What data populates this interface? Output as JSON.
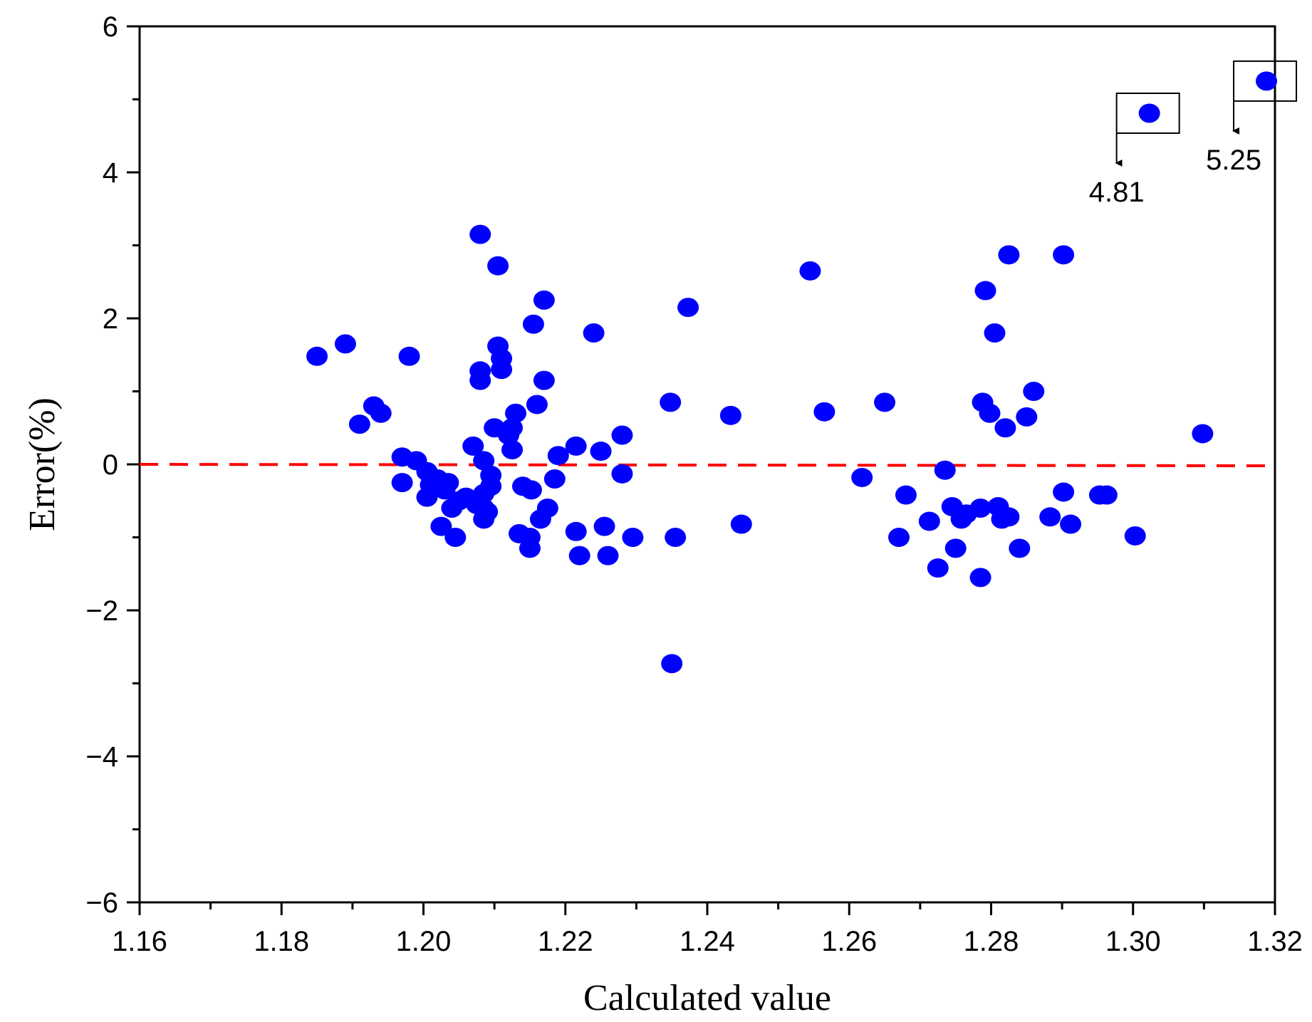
{
  "chart_data": {
    "type": "scatter",
    "title": "",
    "xlabel": "Calculated value",
    "ylabel": "Error(%)",
    "xlim": [
      1.16,
      1.32
    ],
    "ylim": [
      -6,
      6
    ],
    "xticks": [
      "1.16",
      "1.18",
      "1.20",
      "1.22",
      "1.24",
      "1.26",
      "1.28",
      "1.30",
      "1.32"
    ],
    "yticks": [
      "6",
      "4",
      "2",
      "0",
      "−2",
      "−4",
      "−6"
    ],
    "grid": false,
    "point_color": "#0000ff",
    "reference_line": {
      "y": 0,
      "style": "dashed",
      "color": "#ff0000"
    },
    "points": [
      [
        1.185,
        1.48
      ],
      [
        1.189,
        1.65
      ],
      [
        1.191,
        0.55
      ],
      [
        1.193,
        0.8
      ],
      [
        1.194,
        0.7
      ],
      [
        1.197,
        0.1
      ],
      [
        1.197,
        -0.25
      ],
      [
        1.198,
        1.48
      ],
      [
        1.199,
        0.05
      ],
      [
        1.2005,
        -0.1
      ],
      [
        1.2005,
        -0.45
      ],
      [
        1.201,
        -0.28
      ],
      [
        1.202,
        -0.2
      ],
      [
        1.2025,
        -0.85
      ],
      [
        1.203,
        -0.35
      ],
      [
        1.2035,
        -0.25
      ],
      [
        1.204,
        -0.6
      ],
      [
        1.2045,
        -1.0
      ],
      [
        1.205,
        -0.5
      ],
      [
        1.206,
        -0.45
      ],
      [
        1.207,
        0.25
      ],
      [
        1.2075,
        -0.55
      ],
      [
        1.208,
        3.15
      ],
      [
        1.208,
        1.28
      ],
      [
        1.208,
        1.15
      ],
      [
        1.2085,
        0.05
      ],
      [
        1.2085,
        -0.4
      ],
      [
        1.2085,
        -0.6
      ],
      [
        1.2085,
        -0.75
      ],
      [
        1.209,
        -0.65
      ],
      [
        1.2095,
        -0.15
      ],
      [
        1.2095,
        -0.3
      ],
      [
        1.21,
        0.5
      ],
      [
        1.2105,
        2.72
      ],
      [
        1.2105,
        1.62
      ],
      [
        1.211,
        1.45
      ],
      [
        1.211,
        1.3
      ],
      [
        1.212,
        0.4
      ],
      [
        1.2125,
        0.5
      ],
      [
        1.2125,
        0.2
      ],
      [
        1.213,
        0.7
      ],
      [
        1.2135,
        -0.95
      ],
      [
        1.214,
        -0.3
      ],
      [
        1.215,
        -1.0
      ],
      [
        1.215,
        -1.15
      ],
      [
        1.2152,
        -0.35
      ],
      [
        1.2155,
        1.92
      ],
      [
        1.216,
        0.82
      ],
      [
        1.2165,
        -0.75
      ],
      [
        1.217,
        2.25
      ],
      [
        1.217,
        1.15
      ],
      [
        1.2175,
        -0.6
      ],
      [
        1.2185,
        -0.2
      ],
      [
        1.219,
        0.12
      ],
      [
        1.2215,
        0.25
      ],
      [
        1.2215,
        -0.92
      ],
      [
        1.222,
        -1.25
      ],
      [
        1.224,
        1.8
      ],
      [
        1.225,
        0.18
      ],
      [
        1.2255,
        -0.85
      ],
      [
        1.226,
        -1.25
      ],
      [
        1.228,
        0.4
      ],
      [
        1.228,
        -0.13
      ],
      [
        1.2295,
        -1.0
      ],
      [
        1.2348,
        0.85
      ],
      [
        1.2355,
        -1.0
      ],
      [
        1.235,
        -2.73
      ],
      [
        1.2373,
        2.15
      ],
      [
        1.2433,
        0.67
      ],
      [
        1.2448,
        -0.82
      ],
      [
        1.2545,
        2.65
      ],
      [
        1.2565,
        0.72
      ],
      [
        1.2618,
        -0.18
      ],
      [
        1.265,
        0.85
      ],
      [
        1.267,
        -1.0
      ],
      [
        1.268,
        -0.42
      ],
      [
        1.2713,
        -0.78
      ],
      [
        1.2725,
        -1.42
      ],
      [
        1.2735,
        -0.08
      ],
      [
        1.2745,
        -0.58
      ],
      [
        1.275,
        -1.15
      ],
      [
        1.2758,
        -0.75
      ],
      [
        1.2765,
        -0.68
      ],
      [
        1.2785,
        -1.55
      ],
      [
        1.2785,
        -0.6
      ],
      [
        1.2788,
        0.85
      ],
      [
        1.2792,
        2.38
      ],
      [
        1.2798,
        0.7
      ],
      [
        1.2805,
        1.8
      ],
      [
        1.281,
        -0.58
      ],
      [
        1.2815,
        -0.75
      ],
      [
        1.282,
        0.5
      ],
      [
        1.2825,
        2.87
      ],
      [
        1.2825,
        -0.72
      ],
      [
        1.284,
        -1.15
      ],
      [
        1.285,
        0.65
      ],
      [
        1.286,
        1.0
      ],
      [
        1.2883,
        -0.72
      ],
      [
        1.2902,
        2.87
      ],
      [
        1.2902,
        -0.38
      ],
      [
        1.2912,
        -0.82
      ],
      [
        1.2953,
        -0.42
      ],
      [
        1.2963,
        -0.42
      ],
      [
        1.3003,
        -0.98
      ],
      [
        1.3023,
        4.81
      ],
      [
        1.3098,
        0.42
      ],
      [
        1.3188,
        5.25
      ]
    ],
    "annotations": [
      {
        "label": "4.81",
        "x": 1.3023,
        "y": 4.81
      },
      {
        "label": "5.25",
        "x": 1.3188,
        "y": 5.25
      }
    ]
  }
}
